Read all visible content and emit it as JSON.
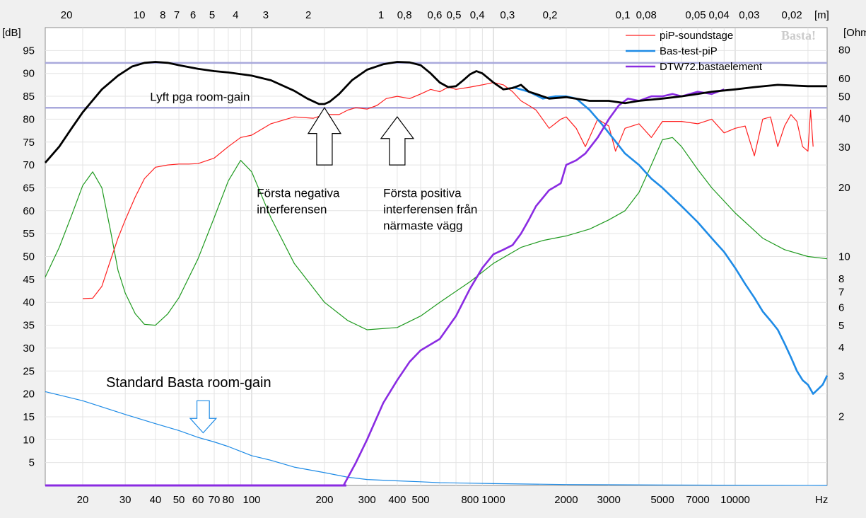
{
  "chart_data": {
    "type": "line",
    "x_scale": "log",
    "xlim": [
      14,
      24000
    ],
    "ylim": [
      0,
      100
    ],
    "ylim_right": [
      1,
      100
    ],
    "units": {
      "left": "[dB]",
      "right": "[Ohm",
      "top": "[m]",
      "bottom": "Hz"
    },
    "x_ticks": [
      "20",
      "30",
      "40",
      "50",
      "60",
      "70",
      "80",
      "100",
      "200",
      "300",
      "400",
      "500",
      "800",
      "1000",
      "2000",
      "3000",
      "5000",
      "7000",
      "10000"
    ],
    "y_ticks": [
      "5",
      "10",
      "15",
      "20",
      "25",
      "30",
      "35",
      "40",
      "45",
      "50",
      "55",
      "60",
      "65",
      "70",
      "75",
      "80",
      "85",
      "90",
      "95"
    ],
    "y_right_ticks": [
      "2",
      "3",
      "4",
      "5",
      "6",
      "7",
      "8",
      "10",
      "20",
      "30",
      "40",
      "50",
      "60",
      "80"
    ],
    "top_ticks": [
      "20",
      "10",
      "8",
      "7",
      "6",
      "5",
      "4",
      "3",
      "2",
      "1",
      "0,8",
      "0,6",
      "0,5",
      "0,4",
      "0,3",
      "0,2",
      "0,1",
      "0,08",
      "0,05",
      "0,04",
      "0,03",
      "0,02"
    ],
    "top_tick_freqs": [
      17.15,
      34.3,
      42.9,
      49.0,
      57.2,
      68.6,
      85.8,
      114.3,
      171.5,
      343,
      428.8,
      571.7,
      686,
      857.5,
      1143,
      1715,
      3430,
      4288,
      6860,
      8575,
      11433,
      17150
    ],
    "reference_lines_db": [
      92.3,
      82.5
    ],
    "watermark": "Basta!",
    "series": [
      {
        "name": "piP-soundstage",
        "color": "#ff2020",
        "width": 1.2,
        "x": [
          20,
          22,
          24,
          26,
          28,
          30,
          33,
          36,
          40,
          45,
          50,
          55,
          60,
          70,
          80,
          90,
          100,
          120,
          150,
          180,
          200,
          230,
          250,
          270,
          300,
          330,
          360,
          400,
          450,
          500,
          550,
          600,
          650,
          700,
          800,
          900,
          1000,
          1100,
          1200,
          1300,
          1400,
          1500,
          1700,
          1900,
          2000,
          2200,
          2400,
          2700,
          3000,
          3200,
          3500,
          4000,
          4500,
          5000,
          6000,
          7000,
          8000,
          9000,
          10000,
          11000,
          12000,
          13000,
          14000,
          15000,
          16000,
          17000,
          18000,
          19000,
          20000,
          20500,
          21000
        ],
        "y": [
          40.8,
          40.9,
          43.5,
          49,
          54,
          58,
          63,
          67,
          69.5,
          70,
          70.2,
          70.2,
          70.3,
          71.5,
          74,
          76,
          76.5,
          79,
          80.5,
          80.2,
          81,
          81,
          82,
          82.5,
          82.2,
          83,
          84.5,
          85,
          84.5,
          85.5,
          86.5,
          86,
          87,
          86.5,
          87,
          87.5,
          88,
          87.5,
          86,
          84,
          83,
          82,
          78,
          80,
          80.5,
          78,
          74,
          80,
          78.5,
          73,
          78,
          79,
          76,
          79.5,
          79.5,
          79,
          80,
          77,
          78,
          78.5,
          72,
          80,
          80.5,
          74,
          78.5,
          81,
          79.5,
          74,
          73,
          82,
          74
        ]
      },
      {
        "name": "Bas-test-piP",
        "color": "#1e8be6",
        "width": 2.6,
        "x": [
          1200,
          1400,
          1600,
          1800,
          2000,
          2200,
          2500,
          2800,
          3000,
          3500,
          4000,
          4500,
          5000,
          6000,
          7000,
          8000,
          9000,
          10000,
          11000,
          12000,
          13000,
          14000,
          15000,
          16000,
          17000,
          18000,
          19000,
          20000,
          21000,
          22000,
          23000,
          24000
        ],
        "y": [
          87,
          86,
          84.5,
          85,
          85,
          84.5,
          82,
          79,
          77,
          72.5,
          70,
          67,
          65,
          61,
          57.5,
          54,
          51,
          47.5,
          44,
          41,
          38,
          36,
          34,
          31,
          28,
          25,
          23,
          22,
          20,
          21,
          22,
          24
        ]
      },
      {
        "name": "DTW72.bastaelement",
        "color": "#8a2be2",
        "width": 2.6,
        "x": [
          240,
          270,
          300,
          350,
          400,
          450,
          500,
          600,
          700,
          800,
          900,
          1000,
          1100,
          1200,
          1300,
          1400,
          1500,
          1700,
          1900,
          2000,
          2200,
          2400,
          2700,
          3000,
          3300,
          3600,
          4000,
          4500,
          5000,
          5500,
          6000,
          7000,
          8000,
          9000
        ],
        "y": [
          0,
          5,
          10,
          18,
          23,
          27,
          29.5,
          32,
          37,
          43,
          47.5,
          50.5,
          51.5,
          52.5,
          55,
          58,
          61,
          64.5,
          66,
          70,
          71,
          72.5,
          76,
          80,
          83,
          84.5,
          84,
          85,
          85,
          85.5,
          85,
          86,
          85.5,
          86.5
        ]
      },
      {
        "name": "",
        "color": "#000000",
        "width": 2.8,
        "x": [
          14,
          16,
          18,
          20,
          24,
          28,
          32,
          36,
          40,
          45,
          50,
          60,
          70,
          80,
          100,
          120,
          150,
          170,
          190,
          200,
          210,
          230,
          260,
          300,
          350,
          400,
          450,
          500,
          550,
          600,
          650,
          700,
          750,
          800,
          850,
          900,
          1000,
          1100,
          1200,
          1300,
          1400,
          1500,
          1700,
          2000,
          2500,
          3000,
          3500,
          4000,
          5000,
          6000,
          7000,
          8000,
          10000,
          12000,
          15000,
          20000,
          24000
        ],
        "y": [
          70.5,
          74,
          78,
          81.5,
          86.5,
          89.5,
          91.5,
          92.3,
          92.5,
          92.3,
          91.8,
          91,
          90.5,
          90.2,
          89.5,
          88.5,
          86.2,
          84.5,
          83.3,
          83.3,
          83.8,
          85.5,
          88.5,
          90.8,
          92,
          92.5,
          92.4,
          91.8,
          90,
          88,
          87,
          87.2,
          88.5,
          89.8,
          90.5,
          90,
          88,
          86.5,
          86.8,
          87.5,
          86,
          85.5,
          84.5,
          84.8,
          84,
          84,
          83.5,
          84,
          84.5,
          85,
          85.5,
          86,
          86.5,
          87,
          87.5,
          87.2,
          87.2
        ]
      },
      {
        "name": "",
        "color": "#1f9a1f",
        "width": 1.2,
        "x": [
          14,
          16,
          18,
          20,
          22,
          24,
          26,
          28,
          30,
          33,
          36,
          40,
          45,
          50,
          60,
          70,
          80,
          90,
          100,
          120,
          150,
          200,
          250,
          300,
          400,
          500,
          600,
          800,
          1000,
          1300,
          1600,
          2000,
          2500,
          3000,
          3500,
          4000,
          4500,
          5000,
          5500,
          6000,
          7000,
          8000,
          10000,
          13000,
          16000,
          20000,
          24000
        ],
        "y": [
          45.5,
          52,
          59,
          65.5,
          68.5,
          65,
          56,
          47,
          42,
          37.5,
          35.2,
          35,
          37.5,
          41,
          49.5,
          58.5,
          66.5,
          71,
          68.5,
          58.5,
          48.5,
          40,
          36,
          34,
          34.5,
          37,
          40,
          44.5,
          48.5,
          52,
          53.5,
          54.5,
          56,
          58,
          60,
          64,
          70,
          75.5,
          76,
          74,
          69,
          65,
          59.5,
          54,
          51.5,
          50,
          49.5
        ]
      },
      {
        "name": "",
        "color": "#1e8be6",
        "width": 1.2,
        "x": [
          14,
          20,
          30,
          40,
          50,
          60,
          70,
          80,
          100,
          120,
          150,
          200,
          250,
          300,
          400,
          500,
          600,
          800,
          1000,
          2000,
          5000,
          24000
        ],
        "y": [
          20.5,
          18.5,
          15.5,
          13.5,
          12,
          10.5,
          9.5,
          8.5,
          6.5,
          5.5,
          4,
          2.8,
          1.8,
          1.3,
          1,
          0.8,
          0.6,
          0.5,
          0.4,
          0.2,
          0.1,
          0
        ]
      }
    ],
    "annotations": [
      {
        "text": "Lyft pga room-gain",
        "x": 38,
        "y": 84
      },
      {
        "lines": [
          "Första negativa",
          "interferensen"
        ],
        "x": 105,
        "y": 63
      },
      {
        "lines": [
          "Första positiva",
          "interferensen från",
          "närmaste vägg"
        ],
        "x": 350,
        "y": 63
      },
      {
        "text": "Standard Basta room-gain",
        "x": 25,
        "y": 21.5,
        "color": "#1e8be6"
      }
    ],
    "arrows": [
      {
        "x": 200,
        "y_tip": 82.5,
        "y_base": 70,
        "dir": "up"
      },
      {
        "x": 400,
        "y_tip": 80.5,
        "y_base": 70,
        "dir": "up"
      },
      {
        "x": 63,
        "y_tip": 11.5,
        "y_base": 18.5,
        "dir": "down",
        "color": "#1e8be6"
      }
    ]
  }
}
